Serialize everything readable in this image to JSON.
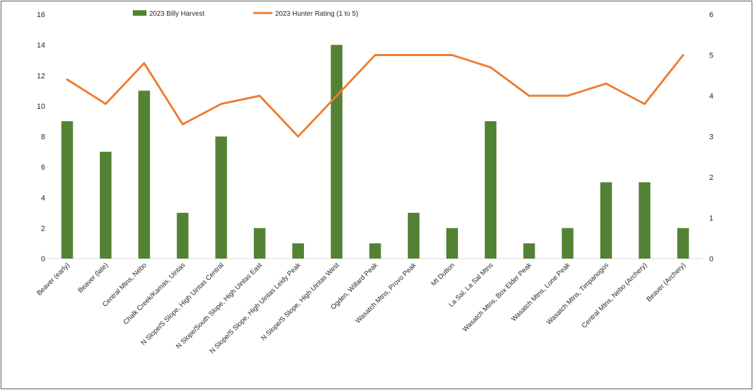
{
  "chart_data": {
    "type": "bar",
    "title": "",
    "xlabel": "",
    "ylabel": "",
    "ylim": [
      0,
      16
    ],
    "y2lim": [
      0,
      6
    ],
    "y_ticks": [
      "0",
      "2",
      "4",
      "6",
      "8",
      "10",
      "12",
      "14",
      "16"
    ],
    "y2_ticks": [
      "0",
      "1",
      "2",
      "3",
      "4",
      "5",
      "6"
    ],
    "grid": false,
    "legend_position": "top-center",
    "categories": [
      "Beaver (early)",
      "Beaver (late)",
      "Central Mtns, Nebo",
      "Chalk Creek/Kamas, Uintas",
      "N Slope/S Slope, High Uintas Central",
      "N Slope/South Slope, High Uintas East",
      "N Slope/S Slope, High Uintas Leidy Peak",
      "N Slope/S Slope, High Uintas West",
      "Ogden, Willard Peak",
      "Wasatch Mtns, Provo Peak",
      "Mt Dutton",
      "La Sal, La Sal Mtns",
      "Wasatch Mtns, Box Elder Peak",
      "Wasatch Mtns, Lone Peak",
      "Wasatch Mtns, Timpanogos",
      "Central Mtns, Nebo (Archery)",
      "Beaver (Archery)"
    ],
    "series": [
      {
        "name": "2023 Billy Harvest",
        "type": "bar",
        "axis": "left",
        "color": "#548235",
        "values": [
          9,
          7,
          11,
          3,
          8,
          2,
          1,
          14,
          1,
          3,
          2,
          9,
          1,
          2,
          5,
          5,
          2
        ]
      },
      {
        "name": "2023 Hunter Rating (1 to 5)",
        "type": "line",
        "axis": "right",
        "color": "#ED7D31",
        "values": [
          4.4,
          3.8,
          4.8,
          3.3,
          3.8,
          4.0,
          3.0,
          4.0,
          5.0,
          5.0,
          5.0,
          4.7,
          4.0,
          4.0,
          4.3,
          3.8,
          5.0
        ]
      }
    ]
  }
}
